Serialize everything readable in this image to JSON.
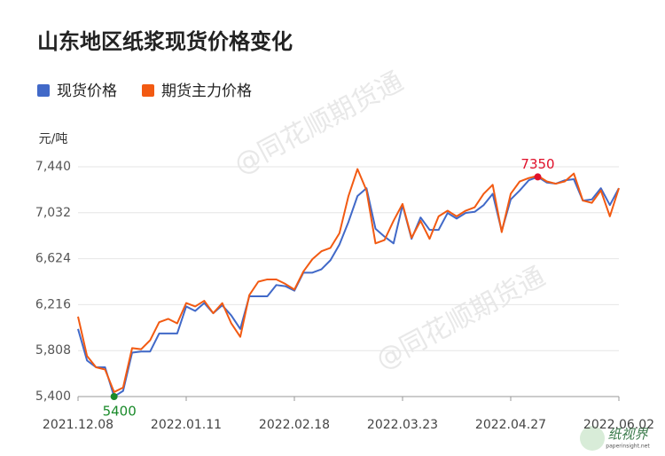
{
  "chart_data": {
    "type": "line",
    "title": "山东地区纸浆现货价格变化",
    "y_unit": "元/吨",
    "watermark": "@同花顺期货通",
    "logo": "纸视界",
    "logo_sub": "paperinsight.net",
    "categories": [
      "2021.12.08",
      null,
      null,
      null,
      null,
      null,
      null,
      null,
      null,
      null,
      null,
      null,
      "2022.01.11",
      null,
      null,
      null,
      null,
      null,
      null,
      null,
      null,
      null,
      null,
      null,
      "2022.02.18",
      null,
      null,
      null,
      null,
      null,
      null,
      null,
      null,
      null,
      null,
      null,
      "2022.03.23",
      null,
      null,
      null,
      null,
      null,
      null,
      null,
      null,
      null,
      null,
      null,
      "2022.04.27",
      null,
      null,
      null,
      null,
      null,
      null,
      null,
      null,
      null,
      null,
      null,
      "2022.06.02"
    ],
    "series": [
      {
        "name": "现货价格",
        "color": "#4169c8",
        "values": [
          6000,
          5720,
          5660,
          5660,
          5400,
          5450,
          5790,
          5800,
          5800,
          5960,
          5960,
          5960,
          6200,
          6160,
          6230,
          6140,
          6210,
          6120,
          6000,
          6290,
          6290,
          6290,
          6390,
          6380,
          6340,
          6500,
          6500,
          6530,
          6610,
          6750,
          6950,
          7180,
          7250,
          6890,
          6820,
          6760,
          7100,
          6800,
          6990,
          6880,
          6880,
          7030,
          6980,
          7030,
          7040,
          7100,
          7200,
          6870,
          7150,
          7230,
          7320,
          7350,
          7300,
          7290,
          7320,
          7330,
          7140,
          7150,
          7250,
          7100,
          7250
        ]
      },
      {
        "name": "期货主力价格",
        "color": "#f25a12",
        "values": [
          6110,
          5760,
          5660,
          5640,
          5440,
          5480,
          5830,
          5820,
          5900,
          6060,
          6090,
          6050,
          6230,
          6200,
          6250,
          6140,
          6230,
          6050,
          5930,
          6300,
          6420,
          6440,
          6440,
          6400,
          6350,
          6510,
          6620,
          6690,
          6720,
          6850,
          7180,
          7420,
          7230,
          6760,
          6790,
          6960,
          7110,
          6810,
          6960,
          6800,
          7000,
          7050,
          7000,
          7050,
          7080,
          7200,
          7280,
          6860,
          7200,
          7310,
          7340,
          7360,
          7310,
          7290,
          7310,
          7380,
          7140,
          7120,
          7230,
          7000,
          7250
        ]
      }
    ],
    "ylim": [
      5400,
      7440
    ],
    "yticks": [
      {
        "value": 5400,
        "label": "5,400"
      },
      {
        "value": 5808,
        "label": "5,808"
      },
      {
        "value": 6216,
        "label": "6,216"
      },
      {
        "value": 6624,
        "label": "6,624"
      },
      {
        "value": 7032,
        "label": "7,032"
      },
      {
        "value": 7440,
        "label": "7,440"
      }
    ],
    "grid": true,
    "max_color": "#e0102a",
    "min_color": "#1a8a2a"
  }
}
